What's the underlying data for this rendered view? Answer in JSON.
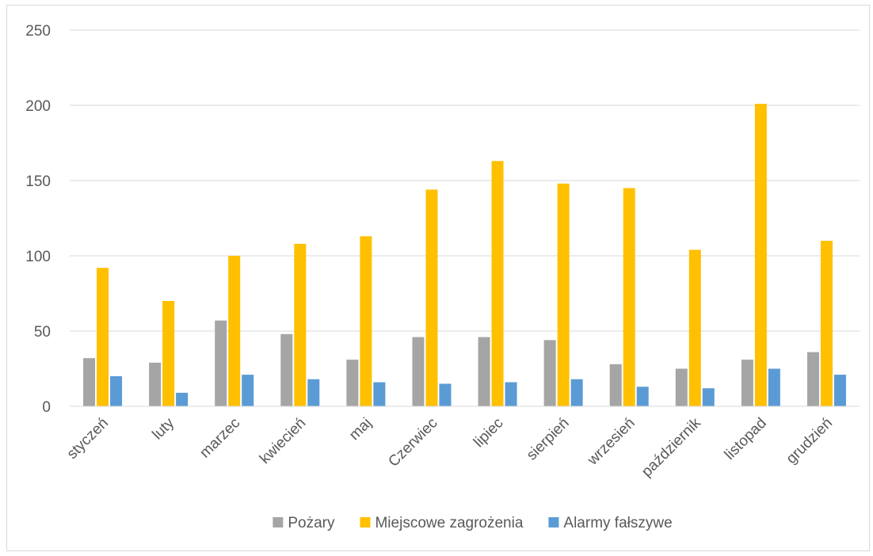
{
  "chart_data": {
    "type": "bar",
    "title": "",
    "xlabel": "",
    "ylabel": "",
    "ylim": [
      0,
      250
    ],
    "yticks": [
      0,
      50,
      100,
      150,
      200,
      250
    ],
    "grid": true,
    "legend_position": "bottom",
    "categories": [
      "styczeń",
      "luty",
      "marzec",
      "kwiecień",
      "maj",
      "Czerwiec",
      "lipiec",
      "sierpień",
      "wrzesień",
      "październik",
      "listopad",
      "grudzień"
    ],
    "series": [
      {
        "name": "Pożary",
        "color": "#a5a5a5",
        "values": [
          32,
          29,
          57,
          48,
          31,
          46,
          46,
          44,
          28,
          25,
          31,
          36
        ]
      },
      {
        "name": "Miejscowe zagrożenia",
        "color": "#ffc000",
        "values": [
          92,
          70,
          100,
          108,
          113,
          144,
          163,
          148,
          145,
          104,
          201,
          110
        ]
      },
      {
        "name": "Alarmy fałszywe",
        "color": "#5b9bd5",
        "values": [
          20,
          9,
          21,
          18,
          16,
          15,
          16,
          18,
          13,
          12,
          25,
          21
        ]
      }
    ]
  }
}
